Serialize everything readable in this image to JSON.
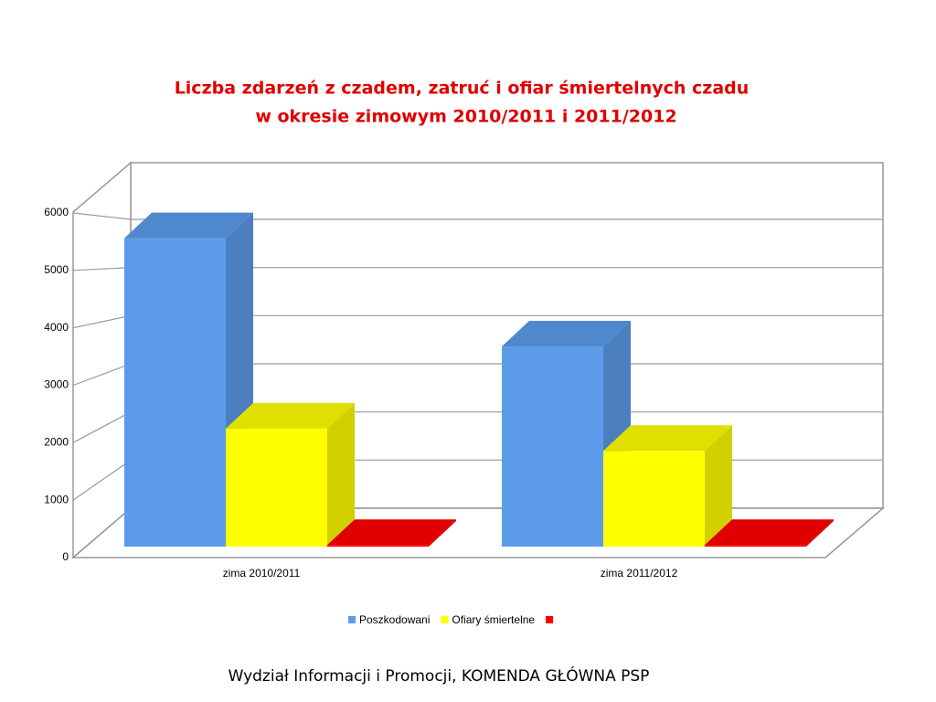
{
  "chart_data": {
    "type": "bar3d",
    "title": [
      "Liczba zdarzeń z czadem, zatruć i ofiar śmiertelnych czadu",
      "w okresie zimowym 2010/2011 i 2011/2012"
    ],
    "categories": [
      "zima 2010/2011",
      "zima 2011/2012"
    ],
    "series": [
      {
        "name": "Poszkodowani",
        "color": "#5b9bea",
        "values": [
          5670,
          3680
        ]
      },
      {
        "name": "Ofiary śmiertelne",
        "color": "#ffff00",
        "values": [
          2170,
          1760
        ]
      },
      {
        "name": null,
        "color": "#ff0000",
        "values": [
          30,
          30
        ]
      }
    ],
    "ylim": [
      0,
      6000
    ],
    "yticks": [
      0,
      1000,
      2000,
      3000,
      4000,
      5000,
      6000
    ],
    "grid": true
  },
  "footer": "Wydział Informacji i Promocji, KOMENDA GŁÓWNA PSP"
}
